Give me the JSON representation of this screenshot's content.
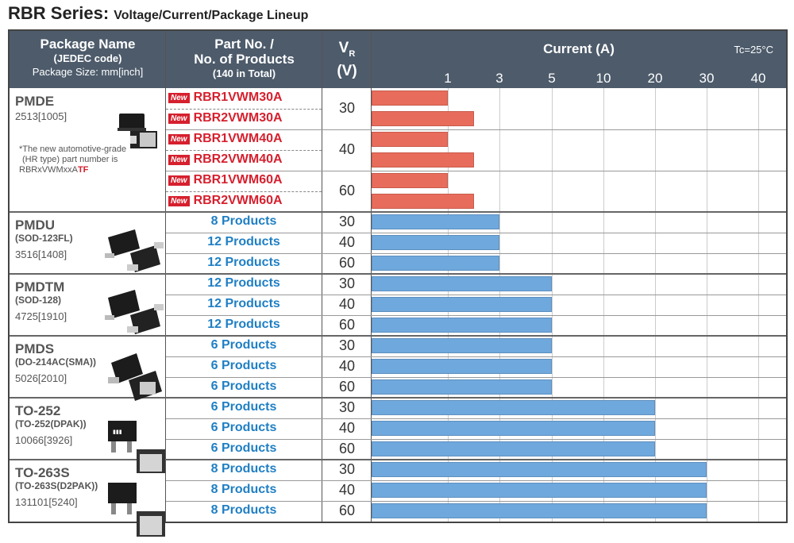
{
  "title": {
    "series": "RBR Series:",
    "subtitle": "Voltage/Current/Package Lineup"
  },
  "header": {
    "package_name": "Package Name",
    "jedec": "(JEDEC code)",
    "size": "Package Size: mm[inch]",
    "partno": "Part No. /",
    "nproducts": "No. of Products",
    "total": "(140 in Total)",
    "vr_main": "V",
    "vr_sub": "R",
    "vr_unit": "(V)",
    "current": "Current (A)",
    "tc": "Tc=25°C"
  },
  "note": {
    "line1": "*The new automotive-grade",
    "line2": "(HR type) part number is",
    "prefix": "RBRxVWMxxA",
    "suffix": "TF"
  },
  "new_label": "New",
  "colors": {
    "header": "#4d5b6b",
    "new_bar": "#e86c5c",
    "bar": "#6fa8dc",
    "new_text": "#d6202e",
    "products_text": "#1f7fc4"
  },
  "packages": [
    {
      "name": "PMDE",
      "jedec": "",
      "size": "2513[1005]",
      "icon": "pmde-package-icon"
    },
    {
      "name": "PMDU",
      "jedec": "(SOD-123FL)",
      "size": "3516[1408]",
      "icon": "pmdu-package-icon"
    },
    {
      "name": "PMDTM",
      "jedec": "(SOD-128)",
      "size": "4725[1910]",
      "icon": "pmdtm-package-icon"
    },
    {
      "name": "PMDS",
      "jedec": "(DO-214AC(SMA))",
      "size": "5026[2010]",
      "icon": "pmds-package-icon"
    },
    {
      "name": "TO-252",
      "jedec": "(TO-252(DPAK))",
      "size": "10066[3926]",
      "icon": "to252-package-icon"
    },
    {
      "name": "TO-263S",
      "jedec": "(TO-263S(D2PAK))",
      "size": "131101[5240]",
      "icon": "to263s-package-icon"
    }
  ],
  "chart_data": {
    "type": "bar",
    "orientation": "horizontal",
    "x_axis": {
      "label": "Current (A)",
      "ticks": [
        1,
        3,
        5,
        10,
        20,
        30,
        40
      ],
      "scale": "categorical-ordinal"
    },
    "rows": [
      {
        "package": "PMDE",
        "part": "RBR1VWM30A",
        "new": true,
        "vr": 30,
        "current": 1
      },
      {
        "package": "PMDE",
        "part": "RBR2VWM30A",
        "new": true,
        "vr": 30,
        "current": 2
      },
      {
        "package": "PMDE",
        "part": "RBR1VWM40A",
        "new": true,
        "vr": 40,
        "current": 1
      },
      {
        "package": "PMDE",
        "part": "RBR2VWM40A",
        "new": true,
        "vr": 40,
        "current": 2
      },
      {
        "package": "PMDE",
        "part": "RBR1VWM60A",
        "new": true,
        "vr": 60,
        "current": 1
      },
      {
        "package": "PMDE",
        "part": "RBR2VWM60A",
        "new": true,
        "vr": 60,
        "current": 2
      },
      {
        "package": "PMDU",
        "part": "8 Products",
        "new": false,
        "vr": 30,
        "current": 3
      },
      {
        "package": "PMDU",
        "part": "12 Products",
        "new": false,
        "vr": 40,
        "current": 3
      },
      {
        "package": "PMDU",
        "part": "12 Products",
        "new": false,
        "vr": 60,
        "current": 3
      },
      {
        "package": "PMDTM",
        "part": "12 Products",
        "new": false,
        "vr": 30,
        "current": 5
      },
      {
        "package": "PMDTM",
        "part": "12 Products",
        "new": false,
        "vr": 40,
        "current": 5
      },
      {
        "package": "PMDTM",
        "part": "12 Products",
        "new": false,
        "vr": 60,
        "current": 5
      },
      {
        "package": "PMDS",
        "part": "6 Products",
        "new": false,
        "vr": 30,
        "current": 5
      },
      {
        "package": "PMDS",
        "part": "6 Products",
        "new": false,
        "vr": 40,
        "current": 5
      },
      {
        "package": "PMDS",
        "part": "6 Products",
        "new": false,
        "vr": 60,
        "current": 5
      },
      {
        "package": "TO-252",
        "part": "6 Products",
        "new": false,
        "vr": 30,
        "current": 20
      },
      {
        "package": "TO-252",
        "part": "6 Products",
        "new": false,
        "vr": 40,
        "current": 20
      },
      {
        "package": "TO-252",
        "part": "6 Products",
        "new": false,
        "vr": 60,
        "current": 20
      },
      {
        "package": "TO-263S",
        "part": "8 Products",
        "new": false,
        "vr": 30,
        "current": 30
      },
      {
        "package": "TO-263S",
        "part": "8 Products",
        "new": false,
        "vr": 40,
        "current": 30
      },
      {
        "package": "TO-263S",
        "part": "8 Products",
        "new": false,
        "vr": 60,
        "current": 30
      }
    ]
  }
}
